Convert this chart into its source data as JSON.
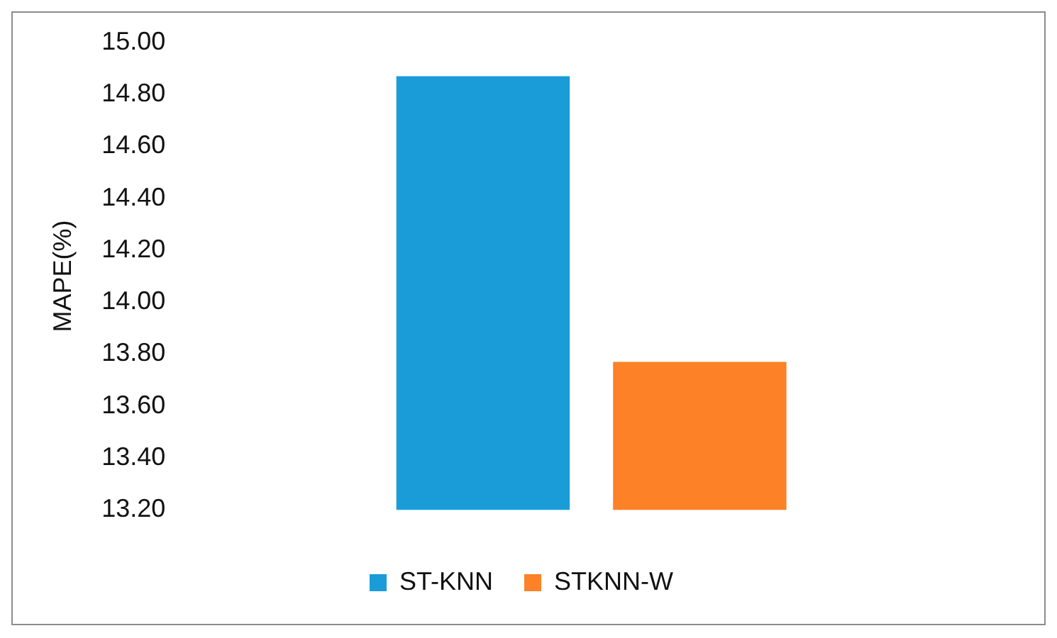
{
  "chart_data": {
    "type": "bar",
    "ylabel": "MAPE(%)",
    "categories": [
      null
    ],
    "series": [
      {
        "name": "ST-KNN",
        "color": "#1a9cd8",
        "values": [
          14.87
        ]
      },
      {
        "name": "STKNN-W",
        "color": "#fd8126",
        "values": [
          13.77
        ]
      }
    ],
    "ylim": [
      13.2,
      15.0
    ],
    "yticks": [
      {
        "value": 13.2,
        "label": "13.20"
      },
      {
        "value": 13.4,
        "label": "13.40"
      },
      {
        "value": 13.6,
        "label": "13.60"
      },
      {
        "value": 13.8,
        "label": "13.80"
      },
      {
        "value": 14.0,
        "label": "14.00"
      },
      {
        "value": 14.2,
        "label": "14.20"
      },
      {
        "value": 14.4,
        "label": "14.40"
      },
      {
        "value": 14.6,
        "label": "14.60"
      },
      {
        "value": 14.8,
        "label": "14.80"
      },
      {
        "value": 15.0,
        "label": "15.00"
      }
    ],
    "grid": false,
    "legend": "bottom"
  }
}
